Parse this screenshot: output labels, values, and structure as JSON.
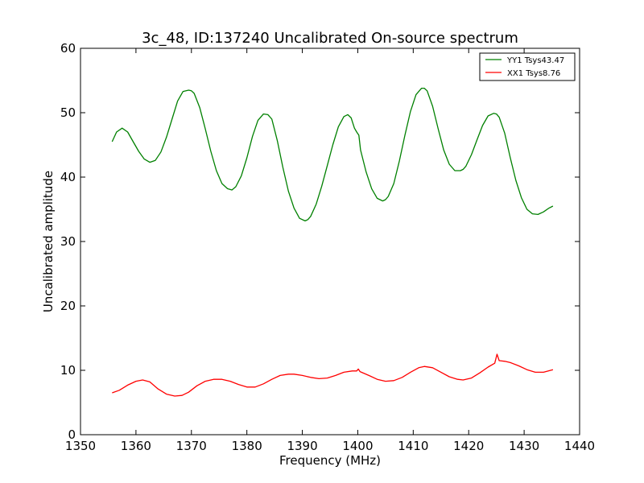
{
  "chart_data": {
    "type": "line",
    "title": "3c_48, ID:137240 Uncalibrated On-source spectrum",
    "xlabel": "Frequency (MHz)",
    "ylabel": "Uncalibrated amplitude",
    "xlim": [
      1350,
      1440
    ],
    "ylim": [
      0,
      60
    ],
    "xticks": [
      1350,
      1360,
      1370,
      1380,
      1390,
      1400,
      1410,
      1420,
      1430,
      1440
    ],
    "yticks": [
      0,
      10,
      20,
      30,
      40,
      50,
      60
    ],
    "grid": false,
    "legend_position": "top-right",
    "series": [
      {
        "name": "YY1 Tsys43.47",
        "color": "#008000",
        "x": [
          1355.7,
          1356.5,
          1357.5,
          1358.5,
          1359.5,
          1360.5,
          1361.5,
          1362.5,
          1363.5,
          1364.5,
          1365.5,
          1366.5,
          1367.5,
          1368.5,
          1369.5,
          1370.0,
          1370.5,
          1371.5,
          1372.5,
          1373.5,
          1374.5,
          1375.5,
          1376.5,
          1377.3,
          1378.0,
          1379.0,
          1380.0,
          1381.0,
          1382.0,
          1383.0,
          1383.8,
          1384.5,
          1385.5,
          1386.5,
          1387.5,
          1388.5,
          1389.5,
          1390.5,
          1391.0,
          1391.5,
          1392.5,
          1393.5,
          1394.5,
          1395.5,
          1396.5,
          1397.5,
          1398.2,
          1398.8,
          1399.4,
          1399.8,
          1400.2,
          1400.5,
          1401.5,
          1402.5,
          1403.5,
          1404.5,
          1405.0,
          1405.5,
          1406.5,
          1407.5,
          1408.5,
          1409.5,
          1410.5,
          1411.5,
          1412.0,
          1412.5,
          1413.5,
          1414.5,
          1415.5,
          1416.5,
          1417.5,
          1418.5,
          1419.0,
          1419.5,
          1420.5,
          1421.5,
          1422.5,
          1423.5,
          1424.5,
          1425.0,
          1425.5,
          1426.5,
          1427.5,
          1428.5,
          1429.5,
          1430.5,
          1431.5,
          1432.5,
          1433.5,
          1434.5,
          1435.2
        ],
        "values": [
          45.5,
          47.0,
          47.6,
          47.0,
          45.5,
          44.0,
          42.8,
          42.3,
          42.6,
          43.9,
          46.2,
          49.0,
          51.8,
          53.3,
          53.5,
          53.4,
          53.0,
          50.8,
          47.5,
          44.0,
          41.0,
          39.0,
          38.2,
          38.0,
          38.5,
          40.2,
          43.0,
          46.3,
          48.8,
          49.8,
          49.7,
          49.0,
          45.6,
          41.5,
          37.8,
          35.2,
          33.6,
          33.2,
          33.4,
          33.9,
          35.8,
          38.6,
          41.8,
          45.0,
          47.8,
          49.4,
          49.7,
          49.2,
          47.6,
          47.0,
          46.5,
          44.2,
          40.8,
          38.2,
          36.7,
          36.3,
          36.5,
          37.0,
          39.0,
          42.5,
          46.5,
          50.2,
          52.8,
          53.8,
          53.8,
          53.4,
          51.0,
          47.5,
          44.2,
          42.0,
          41.0,
          41.0,
          41.2,
          41.7,
          43.5,
          45.8,
          48.0,
          49.5,
          49.9,
          49.8,
          49.3,
          46.8,
          43.0,
          39.5,
          36.8,
          35.0,
          34.3,
          34.2,
          34.6,
          35.2,
          35.5
        ]
      },
      {
        "name": "XX1 Tsys8.76",
        "color": "#ff0000",
        "x": [
          1355.7,
          1357.0,
          1358.5,
          1360.0,
          1361.2,
          1362.5,
          1364.0,
          1365.5,
          1367.0,
          1368.3,
          1369.5,
          1371.0,
          1372.5,
          1374.0,
          1375.5,
          1377.0,
          1378.5,
          1380.0,
          1381.5,
          1383.0,
          1384.5,
          1386.0,
          1387.5,
          1388.5,
          1390.0,
          1391.5,
          1393.0,
          1394.5,
          1396.0,
          1397.5,
          1399.0,
          1399.8,
          1400.1,
          1400.4,
          1402.0,
          1403.5,
          1405.0,
          1406.5,
          1408.0,
          1409.5,
          1411.0,
          1412.0,
          1413.5,
          1415.0,
          1416.5,
          1418.0,
          1419.0,
          1420.5,
          1422.0,
          1423.5,
          1424.7,
          1425.1,
          1425.5,
          1426.5,
          1427.5,
          1429.0,
          1430.5,
          1432.0,
          1433.5,
          1435.2
        ],
        "values": [
          6.5,
          6.9,
          7.7,
          8.3,
          8.5,
          8.2,
          7.1,
          6.3,
          6.0,
          6.1,
          6.6,
          7.6,
          8.3,
          8.6,
          8.6,
          8.3,
          7.8,
          7.4,
          7.4,
          7.9,
          8.6,
          9.2,
          9.4,
          9.4,
          9.2,
          8.9,
          8.7,
          8.8,
          9.2,
          9.7,
          9.9,
          9.9,
          10.2,
          9.8,
          9.2,
          8.6,
          8.3,
          8.4,
          8.9,
          9.7,
          10.4,
          10.6,
          10.4,
          9.7,
          9.0,
          8.6,
          8.5,
          8.8,
          9.6,
          10.5,
          11.1,
          12.5,
          11.5,
          11.4,
          11.2,
          10.7,
          10.1,
          9.7,
          9.7,
          10.1
        ]
      }
    ]
  }
}
